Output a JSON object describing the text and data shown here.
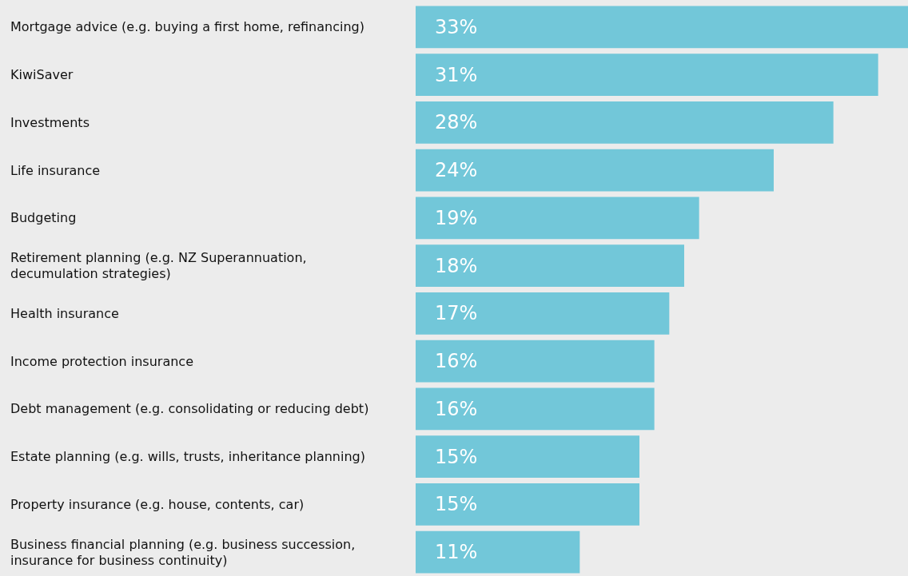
{
  "chart_data": {
    "type": "bar",
    "orientation": "horizontal",
    "categories": [
      "Mortgage advice (e.g. buying a first home, refinancing)",
      "KiwiSaver",
      "Investments",
      "Life insurance",
      "Budgeting",
      "Retirement planning (e.g. NZ Superannuation, decumulation strategies)",
      "Health insurance",
      "Income protection insurance",
      "Debt management (e.g. consolidating or reducing debt)",
      "Estate planning (e.g. wills, trusts, inheritance planning)",
      "Property insurance (e.g. house, contents, car)",
      "Business financial planning (e.g. business succession, insurance for business continuity)"
    ],
    "values": [
      33,
      31,
      28,
      24,
      19,
      18,
      17,
      16,
      16,
      15,
      15,
      11
    ],
    "value_labels": [
      "33%",
      "31%",
      "28%",
      "24%",
      "19%",
      "18%",
      "17%",
      "16%",
      "16%",
      "15%",
      "15%",
      "11%"
    ],
    "color": "#72c7d9"
  }
}
